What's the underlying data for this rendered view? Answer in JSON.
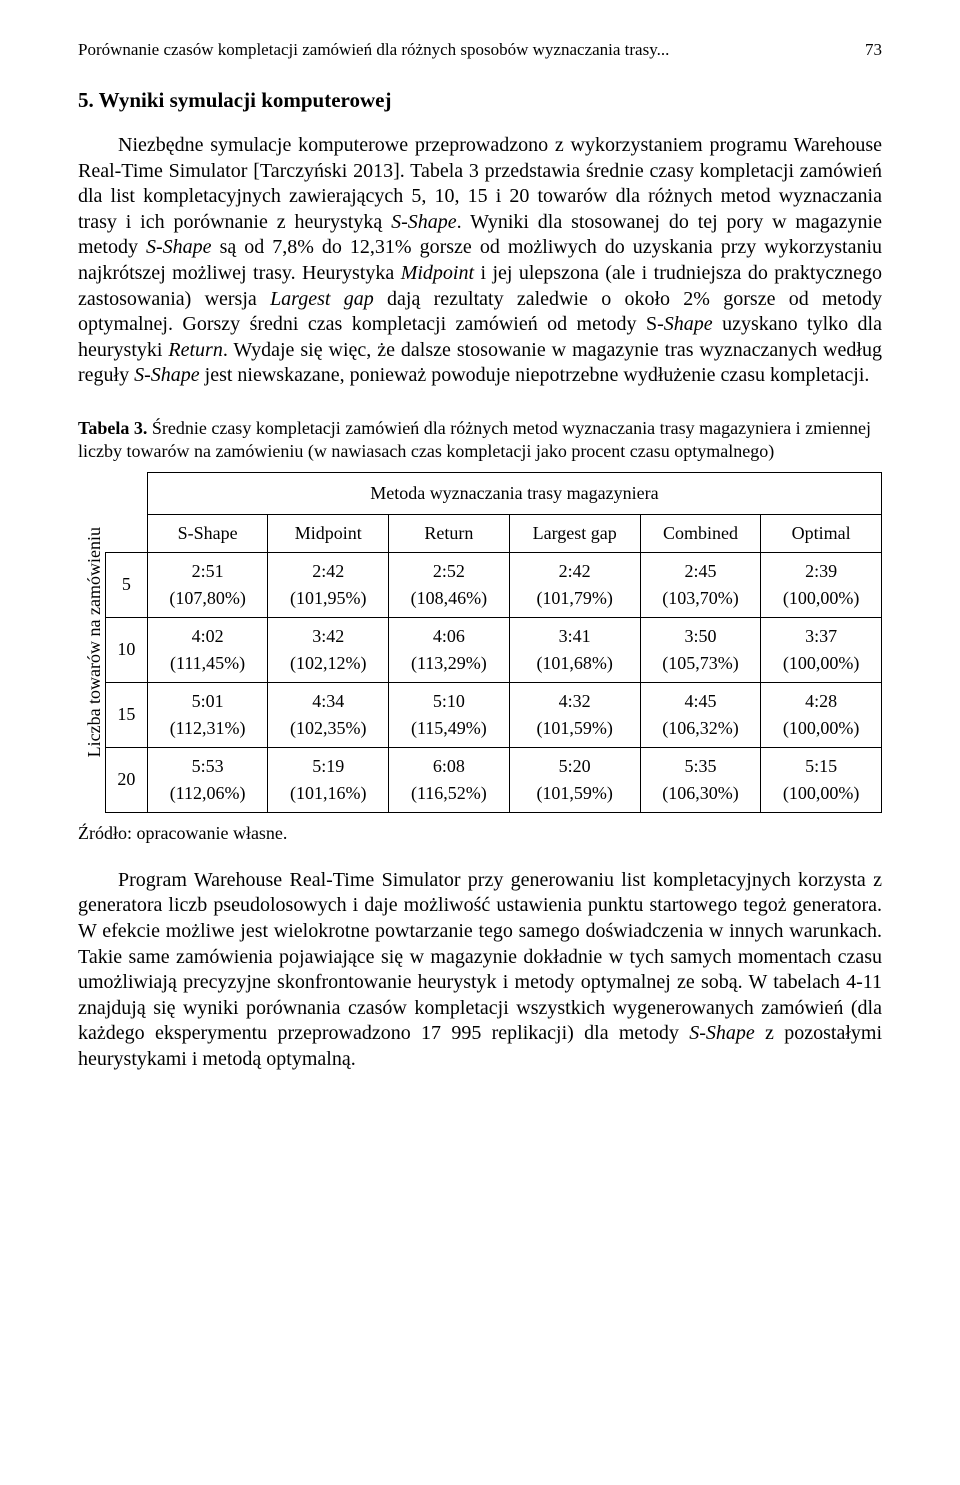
{
  "header": {
    "running_title": "Porównanie czasów kompletacji zamówień dla różnych sposobów wyznaczania trasy...",
    "page_number": "73"
  },
  "section": {
    "heading": "5. Wyniki symulacji komputerowej",
    "para1_a": "Niezbędne symulacje komputerowe przeprowadzono z wykorzystaniem programu Warehouse Real-Time Simulator [Tarczyński 2013]. Tabela 3 przedstawia średnie czasy kompletacji zamówień dla list kompletacyjnych zawierających 5, 10, 15 i 20 towarów dla różnych metod wyznaczania trasy i ich porównanie z heurystyką ",
    "para1_sshape1": "S-Shape",
    "para1_b": ". Wyniki dla stosowanej do tej pory w magazynie metody ",
    "para1_sshape2": "S-Shape",
    "para1_c": " są od 7,8% do 12,31% gorsze od możliwych do uzyskania przy wykorzystaniu najkrótszej możliwej trasy. Heurystyka ",
    "para1_midpoint": "Midpoint",
    "para1_d": " i jej ulepszona (ale i trudniejsza do praktycznego zastosowania) wersja ",
    "para1_largest": "Largest gap",
    "para1_e": " dają rezultaty zaledwie o około 2% gorsze od metody optymalnej. Gorszy średni czas kompletacji zamówień od metody S-",
    "para1_shape3": "Shape",
    "para1_f": " uzyskano tylko dla heurystyki ",
    "para1_return": "Return",
    "para1_g": ". Wydaje się więc, że dalsze stosowanie w magazynie tras wyznaczanych według reguły ",
    "para1_sshape4": "S-Shape",
    "para1_h": " jest niewskazane, ponieważ powoduje niepotrzebne wydłużenie czasu kompletacji.",
    "para2_a": "Program Warehouse Real-Time Simulator przy generowaniu list kompletacyjnych korzysta z generatora liczb pseudolosowych i daje możliwość ustawienia punktu startowego tegoż generatora. W efekcie możliwe jest wielokrotne powtarzanie tego samego doświadczenia w innych warunkach. Takie same zamówienia pojawiające się w magazynie dokładnie w tych samych momentach czasu umożliwiają precyzyjne skonfrontowanie heurystyk i metody optymalnej ze sobą. W tabelach 4-11 znajdują się wyniki porównania czasów kompletacji wszystkich wygenerowanych zamówień (dla każdego eksperymentu przeprowadzono 17 995 replikacji) dla metody ",
    "para2_sshape": "S-Shape",
    "para2_b": " z pozostałymi heurystykami i metodą optymalną."
  },
  "table3": {
    "caption_label": "Tabela 3.",
    "caption_text": " Średnie czasy kompletacji zamówień dla różnych metod wyznaczania trasy magazyniera i zmiennej liczby towarów na zamówieniu (w nawiasach czas kompletacji jako procent czasu optymalnego)",
    "spanner": "Metoda wyznaczania trasy magazyniera",
    "row_label": "Liczba towarów na zamówieniu",
    "columns": [
      "S-Shape",
      "Midpoint",
      "Return",
      "Largest gap",
      "Combined",
      "Optimal"
    ],
    "row_headers": [
      "5",
      "10",
      "15",
      "20"
    ],
    "cells": [
      [
        {
          "time": "2:51",
          "pct": "(107,80%)"
        },
        {
          "time": "2:42",
          "pct": "(101,95%)"
        },
        {
          "time": "2:52",
          "pct": "(108,46%)"
        },
        {
          "time": "2:42",
          "pct": "(101,79%)"
        },
        {
          "time": "2:45",
          "pct": "(103,70%)"
        },
        {
          "time": "2:39",
          "pct": "(100,00%)"
        }
      ],
      [
        {
          "time": "4:02",
          "pct": "(111,45%)"
        },
        {
          "time": "3:42",
          "pct": "(102,12%)"
        },
        {
          "time": "4:06",
          "pct": "(113,29%)"
        },
        {
          "time": "3:41",
          "pct": "(101,68%)"
        },
        {
          "time": "3:50",
          "pct": "(105,73%)"
        },
        {
          "time": "3:37",
          "pct": "(100,00%)"
        }
      ],
      [
        {
          "time": "5:01",
          "pct": "(112,31%)"
        },
        {
          "time": "4:34",
          "pct": "(102,35%)"
        },
        {
          "time": "5:10",
          "pct": "(115,49%)"
        },
        {
          "time": "4:32",
          "pct": "(101,59%)"
        },
        {
          "time": "4:45",
          "pct": "(106,32%)"
        },
        {
          "time": "4:28",
          "pct": "(100,00%)"
        }
      ],
      [
        {
          "time": "5:53",
          "pct": "(112,06%)"
        },
        {
          "time": "5:19",
          "pct": "(101,16%)"
        },
        {
          "time": "6:08",
          "pct": "(116,52%)"
        },
        {
          "time": "5:20",
          "pct": "(101,59%)"
        },
        {
          "time": "5:35",
          "pct": "(106,30%)"
        },
        {
          "time": "5:15",
          "pct": "(100,00%)"
        }
      ]
    ],
    "source": "Źródło: opracowanie własne."
  }
}
